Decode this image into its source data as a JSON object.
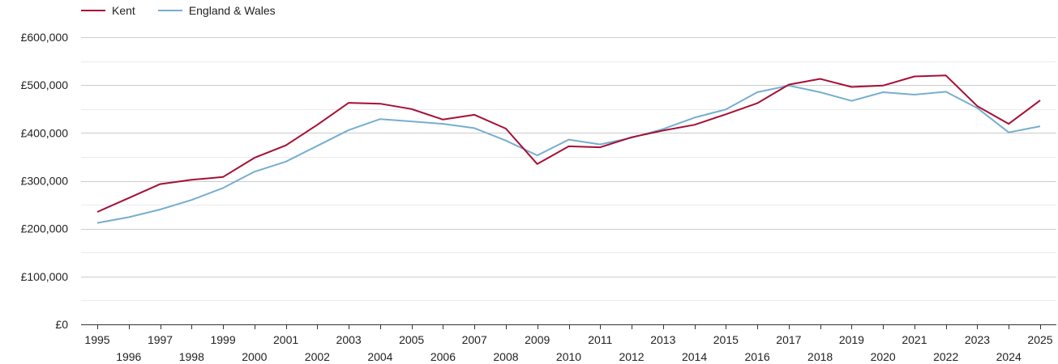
{
  "chart_data": {
    "type": "line",
    "x": [
      1995,
      1996,
      1997,
      1998,
      1999,
      2000,
      2001,
      2002,
      2003,
      2004,
      2005,
      2006,
      2007,
      2008,
      2009,
      2010,
      2011,
      2012,
      2013,
      2014,
      2015,
      2016,
      2017,
      2018,
      2019,
      2020,
      2021,
      2022,
      2023,
      2024,
      2025
    ],
    "series": [
      {
        "name": "Kent",
        "color": "#a50f35",
        "values": [
          235000,
          264000,
          293000,
          302000,
          308000,
          348000,
          374000,
          417000,
          463000,
          461000,
          450000,
          428000,
          438000,
          409000,
          335000,
          372000,
          370000,
          391000,
          405000,
          417000,
          439000,
          462000,
          501000,
          513000,
          496000,
          499000,
          518000,
          520000,
          456000,
          419000,
          468000
        ]
      },
      {
        "name": "England & Wales",
        "color": "#76aed0",
        "values": [
          212000,
          224000,
          240000,
          260000,
          285000,
          319000,
          340000,
          373000,
          406000,
          429000,
          424000,
          419000,
          410000,
          384000,
          353000,
          386000,
          376000,
          390000,
          408000,
          432000,
          449000,
          485000,
          499000,
          485000,
          467000,
          485000,
          480000,
          486000,
          452000,
          401000,
          414000
        ]
      }
    ],
    "ylim": [
      0,
      600000
    ],
    "y_ticks": [
      0,
      100000,
      200000,
      300000,
      400000,
      500000,
      600000
    ],
    "y_tick_labels": [
      "£0",
      "£100,000",
      "£200,000",
      "£300,000",
      "£400,000",
      "£500,000",
      "£600,000"
    ],
    "x_tick_labels": [
      "1995",
      "1996",
      "1997",
      "1998",
      "1999",
      "2000",
      "2001",
      "2002",
      "2003",
      "2004",
      "2005",
      "2006",
      "2007",
      "2008",
      "2009",
      "2010",
      "2011",
      "2012",
      "2013",
      "2014",
      "2015",
      "2016",
      "2017",
      "2018",
      "2019",
      "2020",
      "2021",
      "2022",
      "2023",
      "2024",
      "2025"
    ],
    "xlabel": "",
    "ylabel": "",
    "title": "",
    "grid": true,
    "legend_placement": "top-left"
  }
}
